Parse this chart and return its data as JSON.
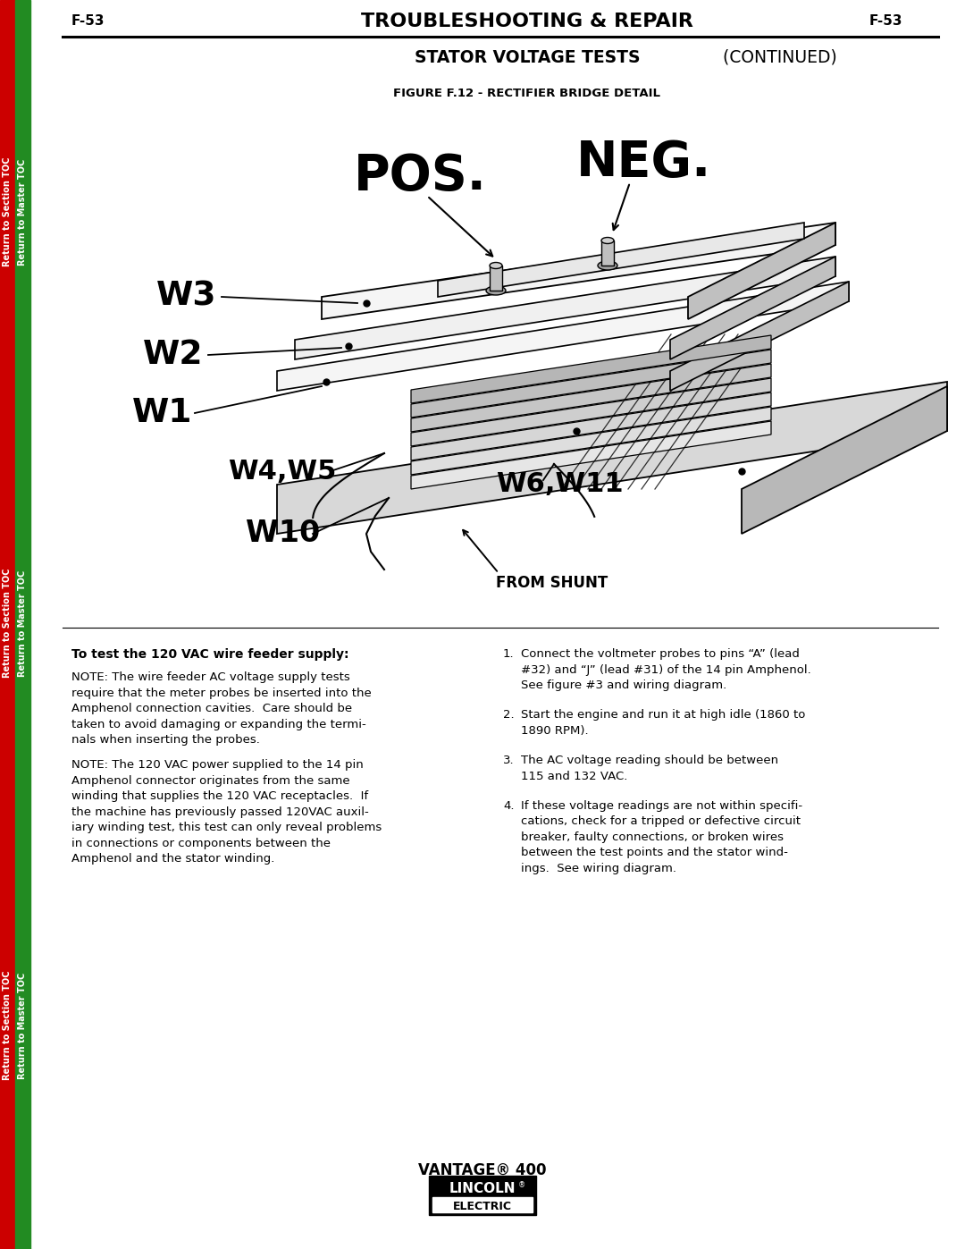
{
  "page_number": "F-53",
  "header_title": "TROUBLESHOOTING & REPAIR",
  "subheader_bold": "STATOR VOLTAGE TESTS",
  "subheader_normal": " (CONTINUED)",
  "figure_title": "FIGURE F.12 - RECTIFIER BRIDGE DETAIL",
  "footer_brand": "VANTAGE® 400",
  "bg_color": "#ffffff",
  "sidebar_red": "#cc0000",
  "sidebar_green": "#228B22",
  "pos_label": "POS.",
  "neg_label": "NEG.",
  "wire_labels": [
    "W3",
    "W2",
    "W1",
    "W4,W5",
    "W10",
    "W6,W11"
  ],
  "from_shunt": "FROM SHUNT",
  "left_bold": "To test the 120 VAC wire feeder supply:",
  "note1_lines": [
    "NOTE: The wire feeder AC voltage supply tests",
    "require that the meter probes be inserted into the",
    "Amphenol connection cavities.  Care should be",
    "taken to avoid damaging or expanding the termi-",
    "nals when inserting the probes."
  ],
  "note2_lines": [
    "NOTE: The 120 VAC power supplied to the 14 pin",
    "Amphenol connector originates from the same",
    "winding that supplies the 120 VAC receptacles.  If",
    "the machine has previously passed 120VAC auxil-",
    "iary winding test, this test can only reveal problems",
    "in connections or components between the",
    "Amphenol and the stator winding."
  ],
  "right_items": [
    [
      "Connect the voltmeter probes to pins “A” (lead",
      "#32) and “J” (lead #31) of the 14 pin Amphenol.",
      "See figure #3 and wiring diagram."
    ],
    [
      "Start the engine and run it at high idle (1860 to",
      "1890 RPM)."
    ],
    [
      "The AC voltage reading should be between",
      "115 and 132 VAC."
    ],
    [
      "If these voltage readings are not within specifi-",
      "cations, check for a tripped or defective circuit",
      "breaker, faulty connections, or broken wires",
      "between the test points and the stator wind-",
      "ings.  See wiring diagram."
    ]
  ]
}
